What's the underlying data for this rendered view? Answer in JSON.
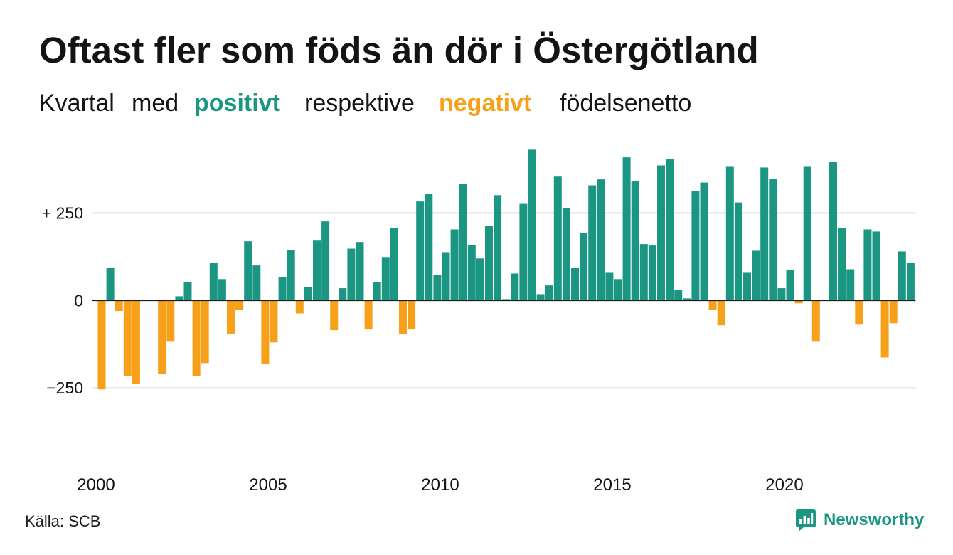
{
  "chart_data": {
    "type": "bar",
    "title": "Oftast fler som föds än dör i Östergötland",
    "subtitle": [
      {
        "text": "Kvartal"
      },
      {
        "text": "med"
      },
      {
        "text": "positivt",
        "color": "#1b9683",
        "bold": true
      },
      {
        "text": "respektive"
      },
      {
        "text": "negativt",
        "color": "#f7a11a",
        "bold": true
      },
      {
        "text": "födelsenetto"
      }
    ],
    "xlabel": "",
    "ylabel": "",
    "xlim": [
      2000,
      2023.75
    ],
    "ylim": [
      -400,
      450
    ],
    "x_ticks": [
      2000,
      2005,
      2010,
      2015,
      2020
    ],
    "y_ticks": [
      {
        "value": 250,
        "label": "+ 250"
      },
      {
        "value": 0,
        "label": "0"
      },
      {
        "value": -250,
        "label": "−250"
      }
    ],
    "grid": true,
    "colors": {
      "positive": "#1b9683",
      "negative": "#f7a11a",
      "grid": "#dddddd",
      "baseline": "#1a1a1a"
    },
    "x": [
      2000,
      2000.25,
      2000.5,
      2000.75,
      2001,
      2001.25,
      2001.5,
      2001.75,
      2002,
      2002.25,
      2002.5,
      2002.75,
      2003,
      2003.25,
      2003.5,
      2003.75,
      2004,
      2004.25,
      2004.5,
      2004.75,
      2005,
      2005.25,
      2005.5,
      2005.75,
      2006,
      2006.25,
      2006.5,
      2006.75,
      2007,
      2007.25,
      2007.5,
      2007.75,
      2008,
      2008.25,
      2008.5,
      2008.75,
      2009,
      2009.25,
      2009.5,
      2009.75,
      2010,
      2010.25,
      2010.5,
      2010.75,
      2011,
      2011.25,
      2011.5,
      2011.75,
      2012,
      2012.25,
      2012.5,
      2012.75,
      2013,
      2013.25,
      2013.5,
      2013.75,
      2014,
      2014.25,
      2014.5,
      2014.75,
      2015,
      2015.25,
      2015.5,
      2015.75,
      2016,
      2016.25,
      2016.5,
      2016.75,
      2017,
      2017.25,
      2017.5,
      2017.75,
      2018,
      2018.25,
      2018.5,
      2018.75,
      2019,
      2019.25,
      2019.5,
      2019.75,
      2020,
      2020.25,
      2020.5,
      2020.75,
      2021,
      2021.25,
      2021.5,
      2021.75,
      2022,
      2022.25,
      2022.5,
      2022.75,
      2023,
      2023.25,
      2023.5
    ],
    "values": [
      -254,
      93,
      -30,
      -217,
      -238,
      0,
      0,
      -209,
      -116,
      12,
      53,
      -217,
      -179,
      108,
      61,
      -95,
      -26,
      169,
      100,
      -181,
      -120,
      67,
      144,
      -37,
      39,
      171,
      226,
      -85,
      35,
      148,
      167,
      -83,
      53,
      124,
      207,
      -95,
      -83,
      283,
      305,
      73,
      138,
      203,
      333,
      159,
      120,
      213,
      301,
      4,
      77,
      276,
      431,
      18,
      43,
      354,
      264,
      93,
      193,
      329,
      346,
      81,
      61,
      409,
      341,
      161,
      157,
      386,
      404,
      30,
      6,
      313,
      337,
      -26,
      -71,
      382,
      280,
      81,
      142,
      380,
      348,
      35,
      87,
      -8,
      382,
      -116,
      0,
      396,
      207,
      89,
      -69,
      203,
      197,
      -163,
      -65,
      140,
      108
    ]
  },
  "footer": {
    "source": "Källa: SCB",
    "brand": "Newsworthy",
    "brand_icon": "newsworthy-logo-icon",
    "brand_color": "#1b9683"
  }
}
